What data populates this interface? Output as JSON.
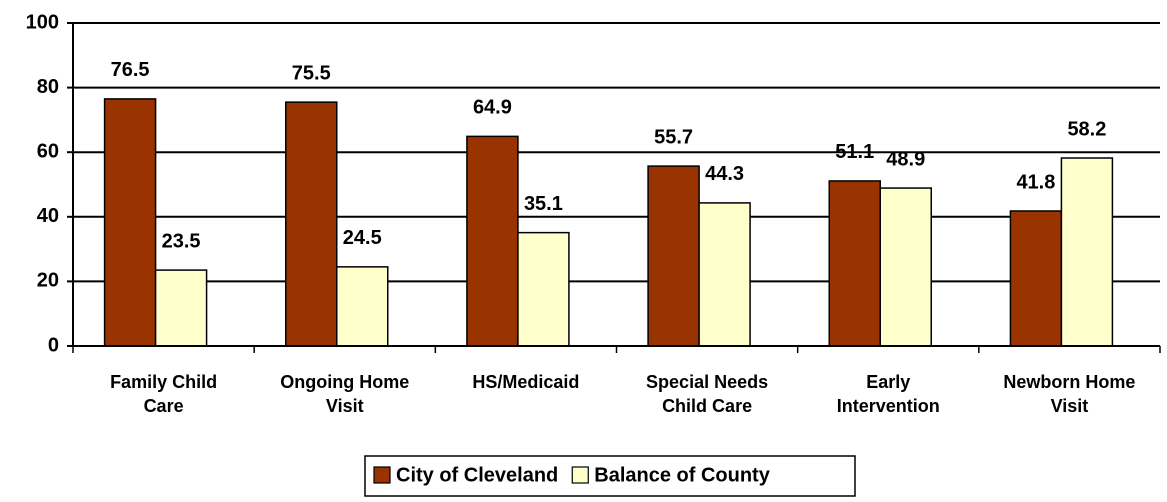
{
  "chart_data": {
    "type": "bar",
    "categories": [
      "Family Child Care",
      "Ongoing Home Visit",
      "HS/Medicaid",
      "Special Needs Child Care",
      "Early Intervention",
      "Newborn Home Visit"
    ],
    "series": [
      {
        "name": "City of Cleveland",
        "color": "#993300",
        "values": [
          76.5,
          75.5,
          64.9,
          55.7,
          51.1,
          41.8
        ]
      },
      {
        "name": "Balance of County",
        "color": "#ffffcc",
        "values": [
          23.5,
          24.5,
          35.1,
          44.3,
          48.9,
          58.2
        ]
      }
    ],
    "ylim": [
      0,
      100
    ],
    "yticks": [
      0,
      20,
      40,
      60,
      80,
      100
    ],
    "grid": true,
    "legend": "bottom"
  }
}
